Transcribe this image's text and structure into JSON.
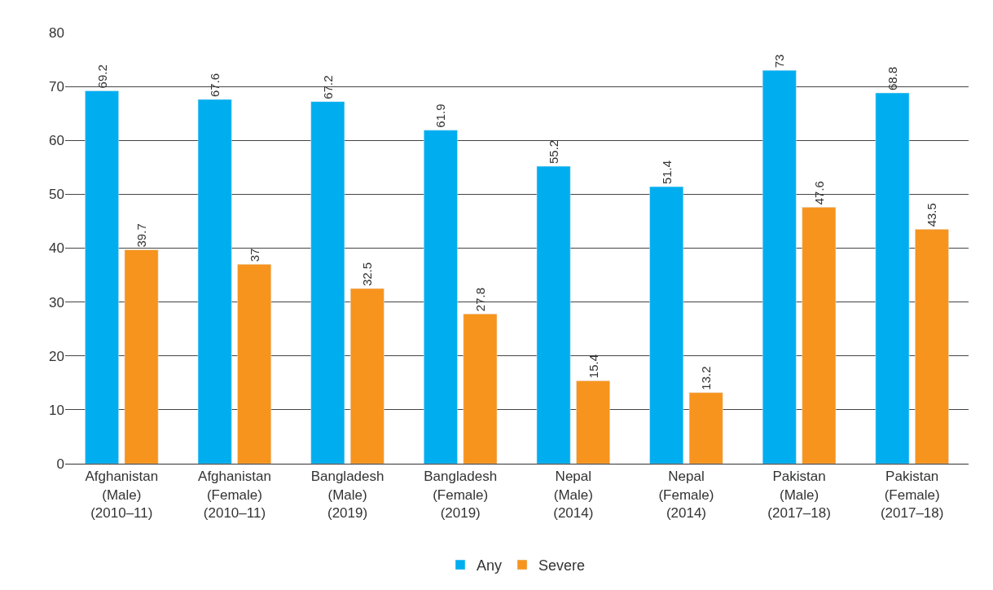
{
  "chart_data": {
    "type": "bar",
    "categories": [
      "Afghanistan\n(Male)\n(2010–11)",
      "Afghanistan\n(Female)\n(2010–11)",
      "Bangladesh\n(Male)\n(2019)",
      "Bangladesh\n(Female)\n(2019)",
      "Nepal\n(Male)\n(2014)",
      "Nepal\n(Female)\n(2014)",
      "Pakistan\n(Male)\n(2017–18)",
      "Pakistan\n(Female)\n(2017–18)"
    ],
    "series": [
      {
        "name": "Any",
        "color": "#00aeef",
        "values": [
          69.2,
          67.6,
          67.2,
          61.9,
          55.2,
          51.4,
          73,
          68.8
        ]
      },
      {
        "name": "Severe",
        "color": "#f7941d",
        "values": [
          39.7,
          37,
          32.5,
          27.8,
          15.4,
          13.2,
          47.6,
          43.5
        ]
      }
    ],
    "ylim": [
      0,
      80
    ],
    "yticks": [
      0,
      10,
      20,
      30,
      40,
      50,
      60,
      70,
      80
    ],
    "grid": "y",
    "legend": "bottom",
    "data_labels": true
  }
}
